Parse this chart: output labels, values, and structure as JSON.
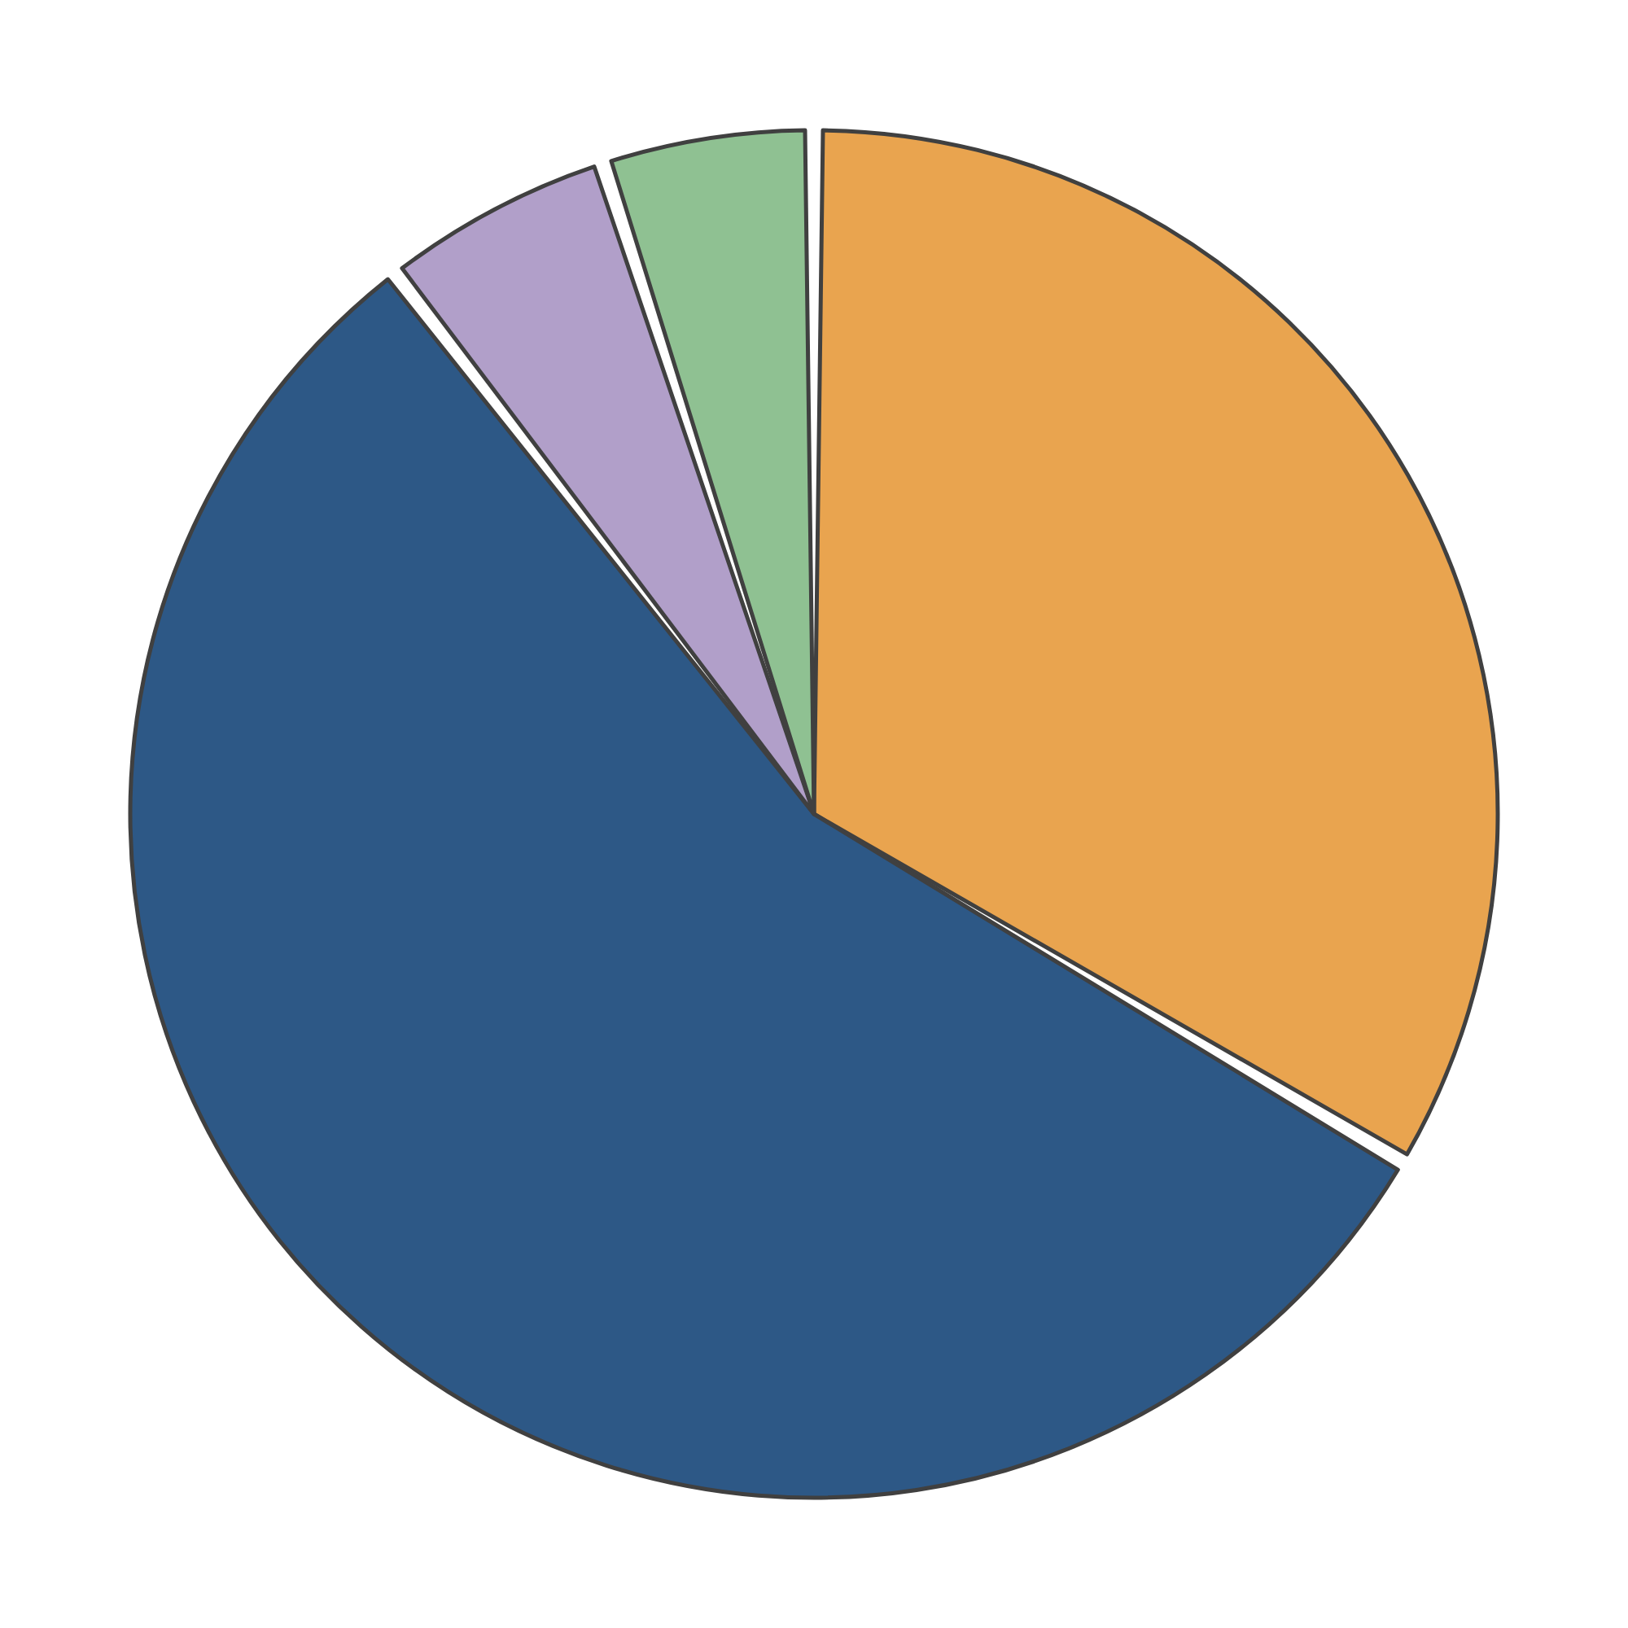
{
  "chart_data": {
    "type": "pie",
    "categories": [
      null,
      null,
      null,
      null
    ],
    "values": [
      33.5,
      56,
      5.5,
      5
    ],
    "colors": [
      "#e9a44f",
      "#2d5886",
      "#b19fc9",
      "#8fc192"
    ]
  }
}
